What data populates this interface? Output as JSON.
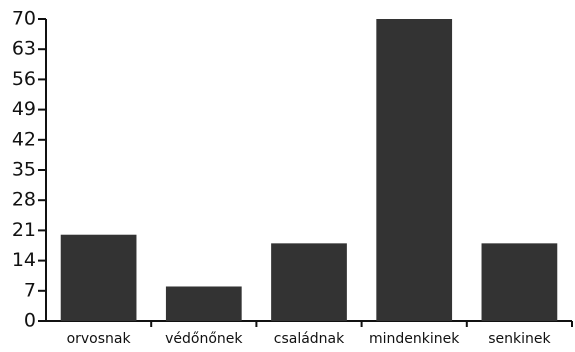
{
  "chart_data": {
    "type": "bar",
    "title": "",
    "xlabel": "",
    "ylabel": "",
    "categories": [
      "orvosnak",
      "védőnőnek",
      "családnak",
      "mindenkinek",
      "senkinek"
    ],
    "values": [
      20,
      8,
      18,
      70,
      18
    ],
    "ylim": [
      0,
      70
    ],
    "yticks": [
      "0",
      "7",
      "14",
      "21",
      "28",
      "35",
      "42",
      "49",
      "56",
      "63",
      "70"
    ],
    "grid": false,
    "legend": "none",
    "bar_color": "#333333",
    "axis_color": "#111111"
  }
}
